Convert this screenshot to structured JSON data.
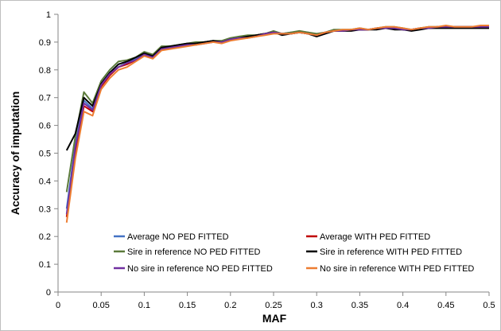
{
  "chart_data": {
    "type": "line",
    "title": "",
    "xlabel": "MAF",
    "ylabel": "Accuracy of imputation",
    "xlim": [
      0,
      0.5
    ],
    "ylim": [
      0,
      1
    ],
    "xticks": [
      0,
      0.05,
      0.1,
      0.15,
      0.2,
      0.25,
      0.3,
      0.35,
      0.4,
      0.45,
      0.5
    ],
    "xtick_labels": [
      "0",
      "0.05",
      "0.1",
      "0.15",
      "0.2",
      "0.25",
      "0.3",
      "0.35",
      "0.4",
      "0.45",
      "0.5"
    ],
    "yticks": [
      0,
      0.1,
      0.2,
      0.3,
      0.4,
      0.5,
      0.6,
      0.7,
      0.8,
      0.9,
      1
    ],
    "ytick_labels": [
      "0",
      "0.1",
      "0.2",
      "0.3",
      "0.4",
      "0.5",
      "0.6",
      "0.7",
      "0.8",
      "0.9",
      "1"
    ],
    "grid": false,
    "legend_position": "bottom-inside",
    "x": [
      0.01,
      0.02,
      0.03,
      0.04,
      0.05,
      0.06,
      0.07,
      0.08,
      0.09,
      0.1,
      0.11,
      0.12,
      0.13,
      0.14,
      0.15,
      0.16,
      0.17,
      0.18,
      0.19,
      0.2,
      0.21,
      0.22,
      0.23,
      0.24,
      0.25,
      0.26,
      0.27,
      0.28,
      0.29,
      0.3,
      0.31,
      0.32,
      0.33,
      0.34,
      0.35,
      0.36,
      0.37,
      0.38,
      0.39,
      0.4,
      0.41,
      0.42,
      0.43,
      0.44,
      0.45,
      0.46,
      0.47,
      0.48,
      0.49,
      0.5
    ],
    "series": [
      {
        "name": "Average NO PED FITTED",
        "color": "#4472c4",
        "values": [
          0.3,
          0.53,
          0.69,
          0.66,
          0.75,
          0.79,
          0.82,
          0.83,
          0.84,
          0.86,
          0.85,
          0.88,
          0.88,
          0.89,
          0.89,
          0.895,
          0.9,
          0.905,
          0.9,
          0.91,
          0.915,
          0.92,
          0.925,
          0.93,
          0.935,
          0.93,
          0.935,
          0.935,
          0.935,
          0.925,
          0.935,
          0.94,
          0.94,
          0.945,
          0.945,
          0.945,
          0.95,
          0.95,
          0.95,
          0.945,
          0.945,
          0.95,
          0.95,
          0.955,
          0.955,
          0.955,
          0.955,
          0.955,
          0.955,
          0.955
        ]
      },
      {
        "name": "Average WITH PED FITTED",
        "color": "#c00000",
        "values": [
          0.27,
          0.5,
          0.67,
          0.65,
          0.74,
          0.78,
          0.81,
          0.82,
          0.835,
          0.855,
          0.845,
          0.875,
          0.88,
          0.885,
          0.89,
          0.895,
          0.9,
          0.9,
          0.9,
          0.91,
          0.915,
          0.92,
          0.925,
          0.93,
          0.935,
          0.93,
          0.93,
          0.935,
          0.93,
          0.925,
          0.935,
          0.94,
          0.94,
          0.945,
          0.945,
          0.945,
          0.95,
          0.95,
          0.95,
          0.945,
          0.945,
          0.95,
          0.95,
          0.955,
          0.955,
          0.955,
          0.955,
          0.955,
          0.955,
          0.955
        ]
      },
      {
        "name": "Sire in reference NO PED FITTED",
        "color": "#5b7a3a",
        "values": [
          0.36,
          0.56,
          0.72,
          0.68,
          0.76,
          0.8,
          0.83,
          0.835,
          0.845,
          0.865,
          0.855,
          0.885,
          0.885,
          0.89,
          0.895,
          0.9,
          0.9,
          0.905,
          0.905,
          0.915,
          0.92,
          0.925,
          0.925,
          0.93,
          0.94,
          0.93,
          0.935,
          0.94,
          0.935,
          0.93,
          0.935,
          0.945,
          0.945,
          0.945,
          0.95,
          0.945,
          0.95,
          0.955,
          0.955,
          0.95,
          0.945,
          0.95,
          0.955,
          0.955,
          0.955,
          0.955,
          0.955,
          0.955,
          0.955,
          0.955
        ]
      },
      {
        "name": "Sire in reference WITH PED FITTED",
        "color": "#000000",
        "values": [
          0.51,
          0.57,
          0.7,
          0.67,
          0.75,
          0.79,
          0.82,
          0.83,
          0.845,
          0.86,
          0.85,
          0.88,
          0.885,
          0.89,
          0.895,
          0.895,
          0.9,
          0.905,
          0.9,
          0.91,
          0.915,
          0.92,
          0.925,
          0.93,
          0.935,
          0.925,
          0.93,
          0.935,
          0.93,
          0.92,
          0.93,
          0.94,
          0.94,
          0.94,
          0.945,
          0.945,
          0.945,
          0.95,
          0.945,
          0.945,
          0.94,
          0.945,
          0.95,
          0.95,
          0.95,
          0.95,
          0.95,
          0.95,
          0.95,
          0.95
        ]
      },
      {
        "name": "No sire in reference NO PED FITTED",
        "color": "#7030a0",
        "values": [
          0.28,
          0.52,
          0.68,
          0.655,
          0.745,
          0.785,
          0.81,
          0.825,
          0.835,
          0.855,
          0.845,
          0.875,
          0.88,
          0.885,
          0.89,
          0.89,
          0.895,
          0.9,
          0.9,
          0.91,
          0.915,
          0.915,
          0.92,
          0.93,
          0.935,
          0.93,
          0.93,
          0.935,
          0.93,
          0.925,
          0.935,
          0.94,
          0.94,
          0.945,
          0.945,
          0.945,
          0.95,
          0.95,
          0.95,
          0.945,
          0.945,
          0.95,
          0.95,
          0.955,
          0.955,
          0.955,
          0.955,
          0.955,
          0.955,
          0.955
        ]
      },
      {
        "name": "No sire in reference WITH PED FITTED",
        "color": "#ed7d31",
        "values": [
          0.25,
          0.48,
          0.65,
          0.635,
          0.73,
          0.77,
          0.8,
          0.81,
          0.83,
          0.85,
          0.84,
          0.87,
          0.875,
          0.88,
          0.885,
          0.89,
          0.895,
          0.9,
          0.895,
          0.905,
          0.91,
          0.915,
          0.92,
          0.925,
          0.93,
          0.93,
          0.93,
          0.935,
          0.93,
          0.925,
          0.935,
          0.94,
          0.945,
          0.945,
          0.95,
          0.945,
          0.95,
          0.955,
          0.955,
          0.95,
          0.945,
          0.95,
          0.955,
          0.955,
          0.96,
          0.955,
          0.955,
          0.955,
          0.96,
          0.96
        ]
      }
    ]
  }
}
